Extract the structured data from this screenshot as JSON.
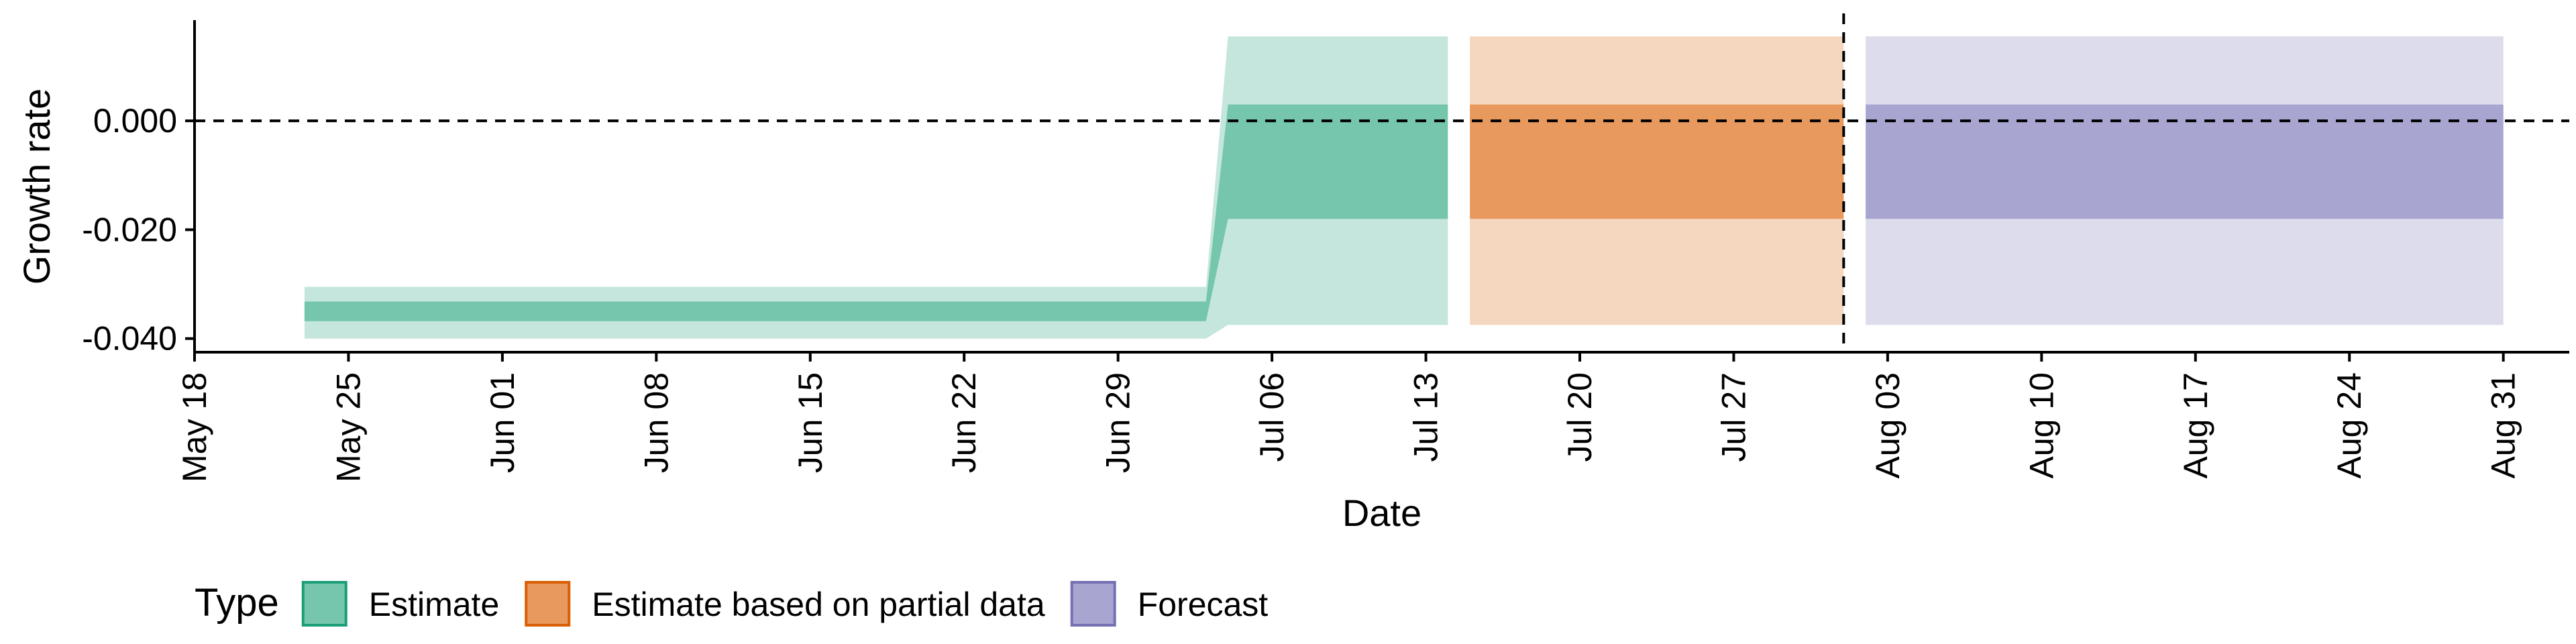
{
  "chart_data": {
    "type": "area",
    "xlabel": "Date",
    "ylabel": "Growth rate",
    "ylim": [
      -0.0425,
      0.0185
    ],
    "xlim": [
      "2020-05-18",
      "2020-09-03"
    ],
    "y_ticks": [
      -0.04,
      -0.02,
      0.0
    ],
    "y_tick_labels": [
      "-0.040",
      "-0.020",
      "0.000"
    ],
    "x_ticks": [
      "2020-05-18",
      "2020-05-25",
      "2020-06-01",
      "2020-06-08",
      "2020-06-15",
      "2020-06-22",
      "2020-06-29",
      "2020-07-06",
      "2020-07-13",
      "2020-07-20",
      "2020-07-27",
      "2020-08-03",
      "2020-08-10",
      "2020-08-17",
      "2020-08-24",
      "2020-08-31"
    ],
    "x_tick_labels": [
      "May 18",
      "May 25",
      "Jun 01",
      "Jun 08",
      "Jun 15",
      "Jun 22",
      "Jun 29",
      "Jul 06",
      "Jul 13",
      "Jul 20",
      "Jul 27",
      "Aug 03",
      "Aug 10",
      "Aug 17",
      "Aug 24",
      "Aug 31"
    ],
    "hline_y": 0.0,
    "vline_x": "2020-08-01",
    "grid": false,
    "legend": {
      "title": "Type",
      "position": "bottom-left",
      "entries": [
        "Estimate",
        "Estimate based on partial data",
        "Forecast"
      ]
    },
    "series": [
      {
        "name": "Estimate",
        "color": "#1b9e77",
        "fill_inner": "#75c6ad",
        "fill_outer": "#c5e6dc",
        "points": [
          {
            "x": "2020-05-23",
            "outer_lo": -0.04,
            "outer_hi": -0.0305,
            "inner_lo": -0.0368,
            "inner_hi": -0.0332
          },
          {
            "x": "2020-07-03",
            "outer_lo": -0.04,
            "outer_hi": -0.0305,
            "inner_lo": -0.0368,
            "inner_hi": -0.0332
          },
          {
            "x": "2020-07-04",
            "outer_lo": -0.0375,
            "outer_hi": 0.0155,
            "inner_lo": -0.018,
            "inner_hi": 0.003
          },
          {
            "x": "2020-07-14",
            "outer_lo": -0.0375,
            "outer_hi": 0.0155,
            "inner_lo": -0.018,
            "inner_hi": 0.003
          }
        ]
      },
      {
        "name": "Estimate based on partial data",
        "color": "#d95f02",
        "fill_inner": "#e89a5e",
        "fill_outer": "#f5d7c0",
        "points": [
          {
            "x": "2020-07-15",
            "outer_lo": -0.0375,
            "outer_hi": 0.0155,
            "inner_lo": -0.018,
            "inner_hi": 0.003
          },
          {
            "x": "2020-08-01",
            "outer_lo": -0.0375,
            "outer_hi": 0.0155,
            "inner_lo": -0.018,
            "inner_hi": 0.003
          }
        ]
      },
      {
        "name": "Forecast",
        "color": "#7570b3",
        "fill_inner": "#a8a5d0",
        "fill_outer": "#dddcec",
        "points": [
          {
            "x": "2020-08-02",
            "outer_lo": -0.0375,
            "outer_hi": 0.0155,
            "inner_lo": -0.018,
            "inner_hi": 0.003
          },
          {
            "x": "2020-08-31",
            "outer_lo": -0.0375,
            "outer_hi": 0.0155,
            "inner_lo": -0.018,
            "inner_hi": 0.003
          }
        ]
      }
    ]
  }
}
